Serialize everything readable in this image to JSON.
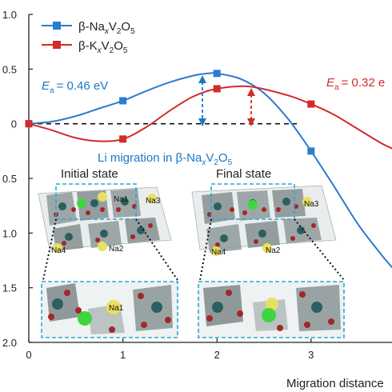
{
  "chart_data": {
    "type": "line",
    "xlabel": "Migration distance",
    "xlim": [
      0,
      3.9
    ],
    "ylim": [
      -2.0,
      1.0
    ],
    "x_ticks": [
      0,
      1,
      2,
      3
    ],
    "y_ticks": [
      1.0,
      0.5,
      0,
      -0.5,
      -1.0,
      -1.5,
      -2.0
    ],
    "y_tick_labels": [
      "1.0",
      "0.5",
      "0",
      "0.5",
      "1.0",
      "1.5",
      "2.0"
    ],
    "legend_position": "top-left",
    "baseline_y": 0,
    "series": [
      {
        "name_main": "β-Na",
        "name_sub1": "x",
        "name_mid": "V",
        "name_sub2": "2",
        "name_end": "O",
        "name_sub3": "5",
        "color": "#2b7bd0",
        "marker": "square",
        "x": [
          0,
          1,
          2,
          3
        ],
        "values": [
          0,
          0.21,
          0.46,
          -0.25
        ],
        "curve": [
          [
            0,
            0
          ],
          [
            0.25,
            0.02
          ],
          [
            0.5,
            0.07
          ],
          [
            0.75,
            0.14
          ],
          [
            1.0,
            0.21
          ],
          [
            1.25,
            0.3
          ],
          [
            1.5,
            0.38
          ],
          [
            1.75,
            0.44
          ],
          [
            1.9,
            0.46
          ],
          [
            2.0,
            0.46
          ],
          [
            2.25,
            0.41
          ],
          [
            2.5,
            0.28
          ],
          [
            2.75,
            0.05
          ],
          [
            3.0,
            -0.25
          ],
          [
            3.25,
            -0.58
          ],
          [
            3.5,
            -0.92
          ],
          [
            3.75,
            -1.2
          ],
          [
            3.9,
            -1.35
          ]
        ]
      },
      {
        "name_main": "β-K",
        "name_sub1": "x",
        "name_mid": "V",
        "name_sub2": "2",
        "name_end": "O",
        "name_sub3": "5",
        "color": "#d42a2a",
        "marker": "square",
        "x": [
          0,
          1,
          2,
          3
        ],
        "values": [
          0,
          -0.14,
          0.32,
          0.18
        ],
        "curve": [
          [
            0,
            0
          ],
          [
            0.25,
            -0.06
          ],
          [
            0.5,
            -0.13
          ],
          [
            0.75,
            -0.16
          ],
          [
            1.0,
            -0.14
          ],
          [
            1.25,
            -0.03
          ],
          [
            1.5,
            0.12
          ],
          [
            1.75,
            0.25
          ],
          [
            2.0,
            0.32
          ],
          [
            2.35,
            0.34
          ],
          [
            2.75,
            0.26
          ],
          [
            3.0,
            0.18
          ],
          [
            3.25,
            0.08
          ],
          [
            3.5,
            -0.05
          ],
          [
            3.75,
            -0.18
          ],
          [
            3.9,
            -0.24
          ]
        ]
      }
    ],
    "annotations": {
      "ea_left_E": "E",
      "ea_left_sub": "a",
      "ea_left_value": "= 0.46 eV",
      "ea_right_E": "E",
      "ea_right_sub": "a",
      "ea_right_value": "= 0.32 e",
      "inset_title_main": "Li migration in β-Na",
      "inset_title_sub1": "x",
      "inset_title_mid": "V",
      "inset_title_sub2": "2",
      "inset_title_end": "O",
      "inset_title_sub3": "5",
      "initial_state": "Initial state",
      "final_state": "Final state",
      "atom_labels_initial": [
        "Na1",
        "Na3",
        "Na4",
        "Na2"
      ],
      "atom_labels_final": [
        "Na3",
        "Na4",
        "Na2"
      ],
      "zoom_label_initial": "Na1"
    },
    "colors": {
      "blue": "#2b7bd0",
      "red": "#d42a2a",
      "annot_blue": "#1a78c8",
      "annot_red": "#d42a2a",
      "inset_frame": "#2aa7d8",
      "teal_atom": "#2c5f5f",
      "oxygen": "#a02828",
      "li": "#3ed63e",
      "na": "#e8e060"
    }
  }
}
